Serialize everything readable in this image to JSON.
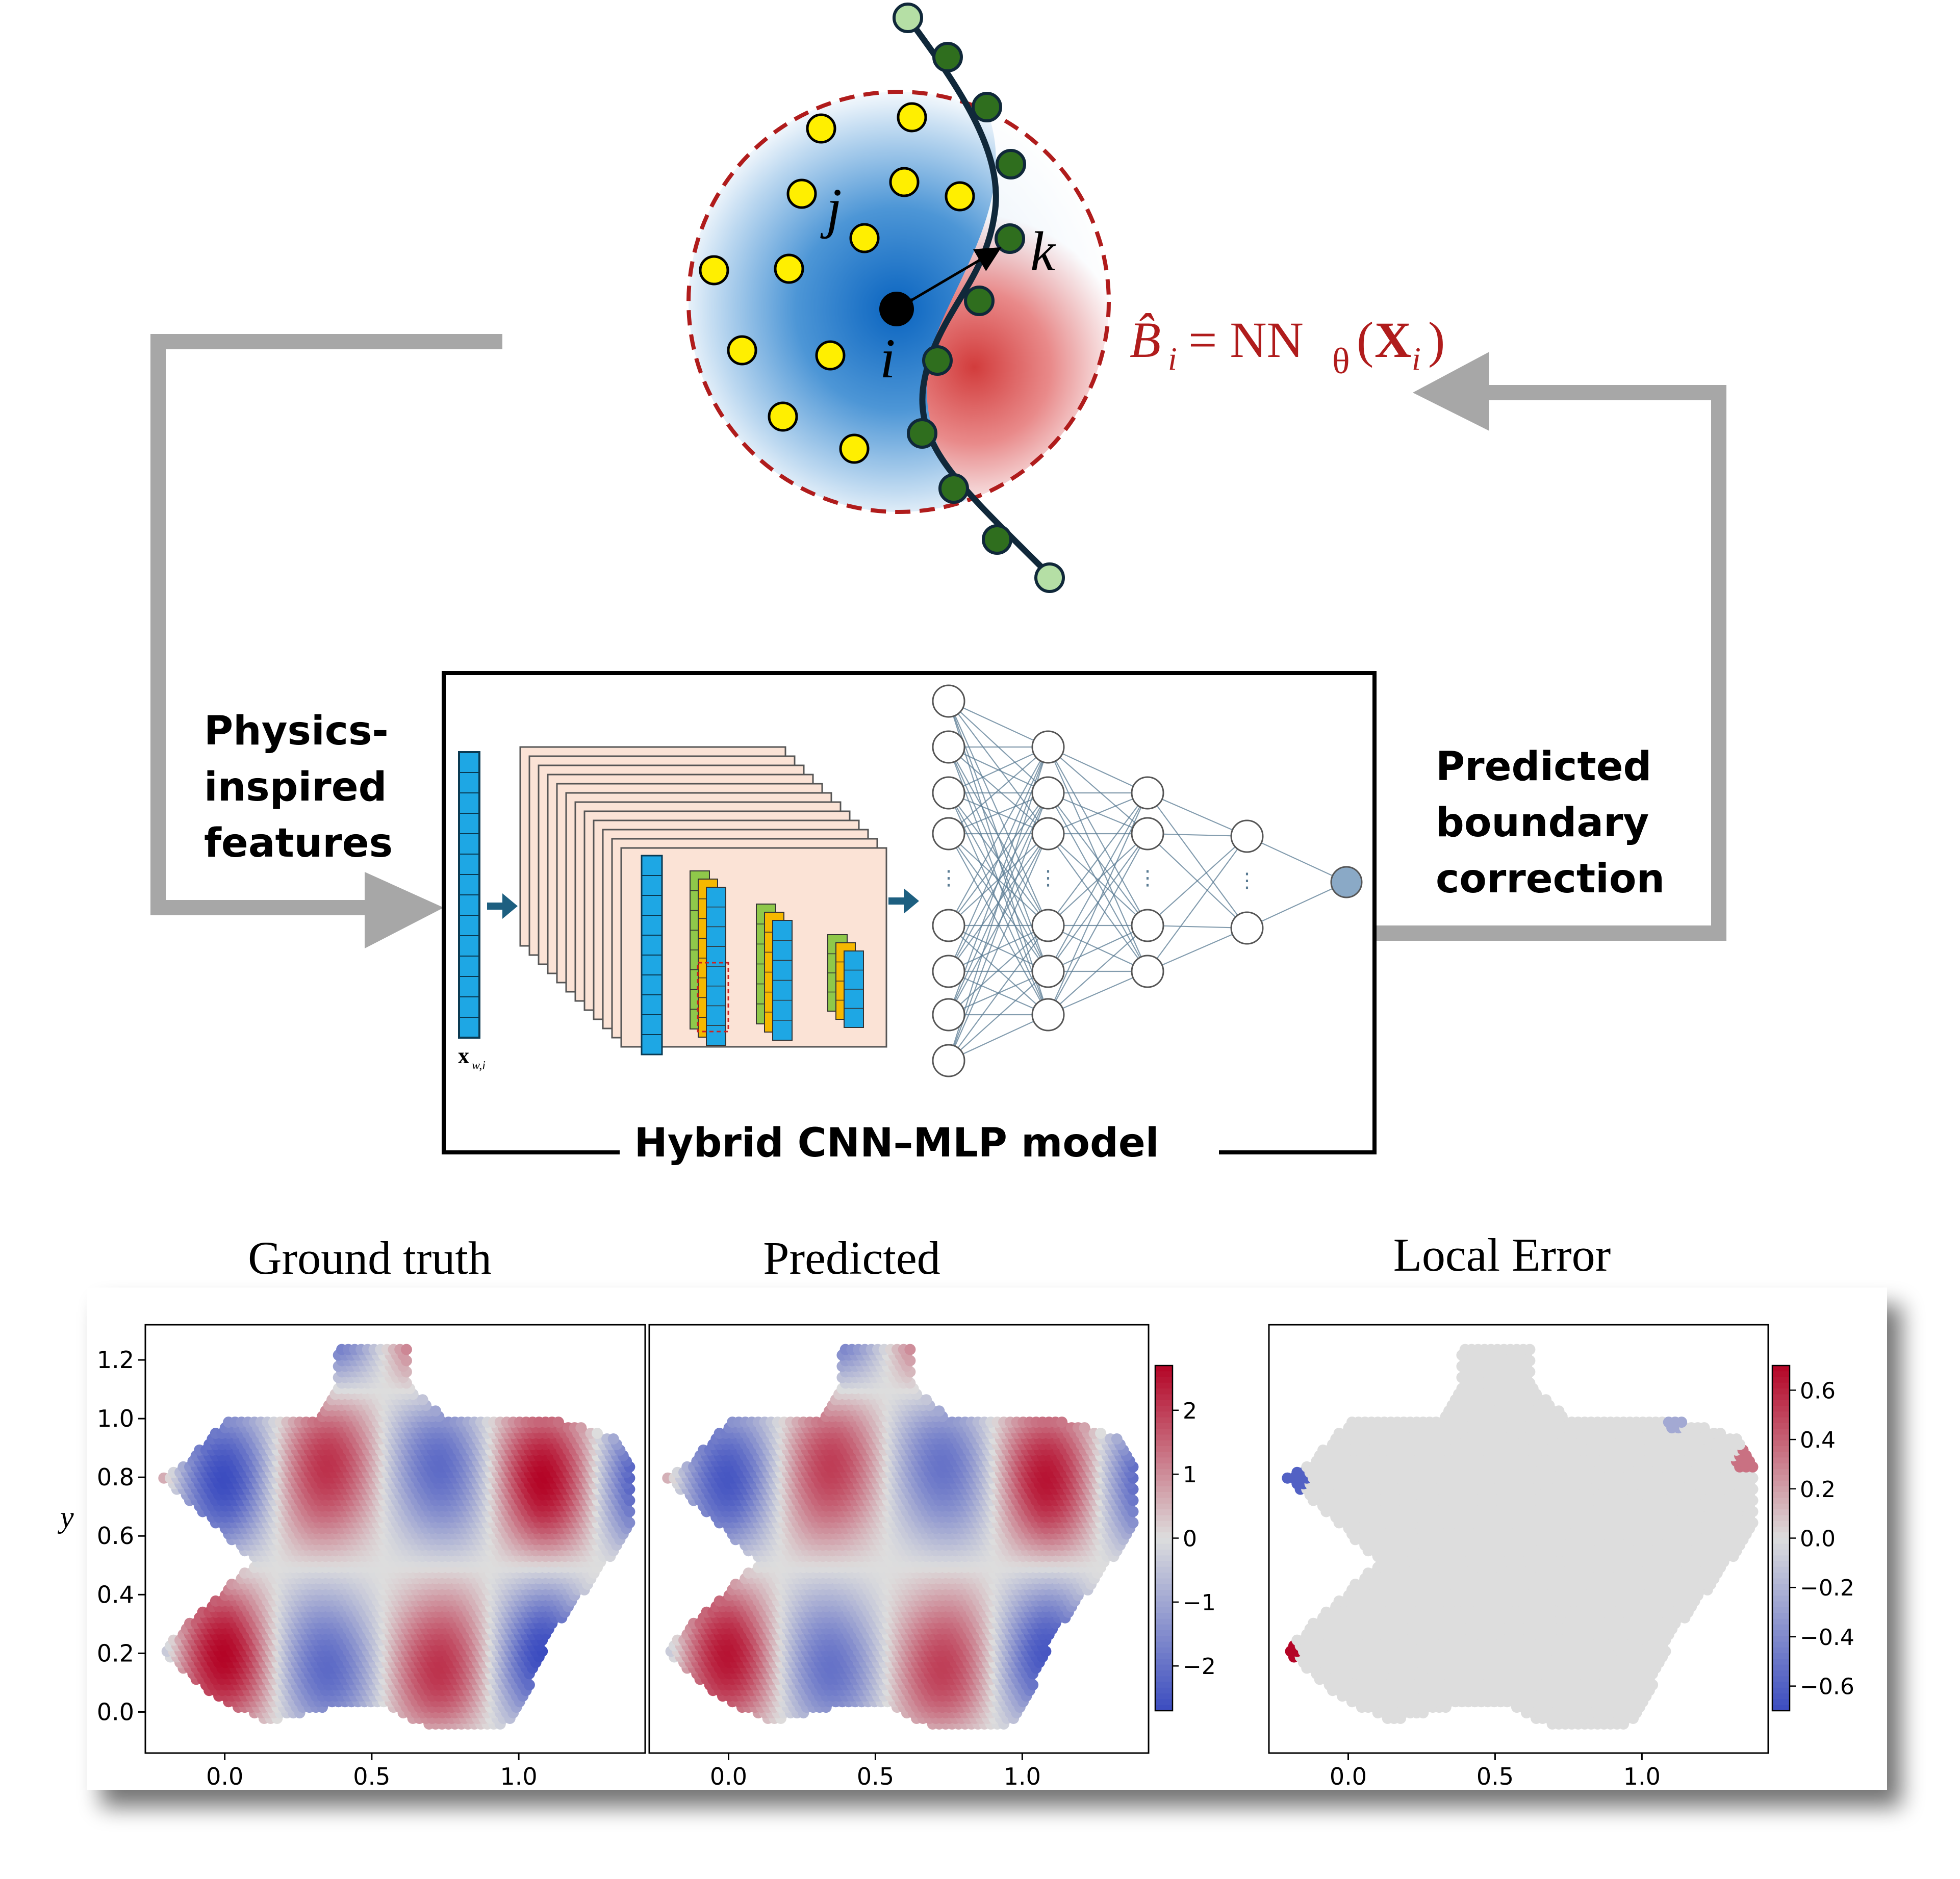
{
  "top_diagram": {
    "label_j": "j",
    "label_k": "k",
    "label_i": "i",
    "equation": {
      "lhs": "B̂",
      "lhs_sub": "i",
      "eq": " = NN",
      "theta": "θ",
      "open": "(",
      "X": "X",
      "X_sub": "i",
      "close": ")"
    },
    "colors": {
      "interior_node": "#ffef00",
      "boundary_node": "#2f6e1e",
      "boundary_end_node": "#b5dfa5",
      "circle_dash": "#b01c1c",
      "equation": "#b01c1c",
      "arrow_gray": "#a7a7a7"
    }
  },
  "left_label": [
    "Physics-",
    "inspired",
    "features"
  ],
  "right_label": [
    "Predicted",
    "boundary",
    "correction"
  ],
  "model_box": {
    "title": "Hybrid CNN–MLP model",
    "input_label": "x",
    "input_label_sub": "w,i",
    "mlp_layers": [
      9,
      7,
      5,
      3,
      1
    ]
  },
  "plots": {
    "titles": [
      "Ground truth",
      "Predicted",
      "Local Error"
    ],
    "ylabel": "y",
    "x_ticks": [
      "0.0",
      "0.5",
      "1.0"
    ],
    "y_ticks": [
      "1.2",
      "1.0",
      "0.8",
      "0.6",
      "0.4",
      "0.2",
      "0.0"
    ],
    "colorbar1_ticks": [
      "2",
      "1",
      "0",
      "−1",
      "−2"
    ],
    "colorbar2_ticks": [
      "0.6",
      "0.4",
      "0.2",
      "0.0",
      "−0.2",
      "−0.4",
      "−0.6"
    ],
    "cmap": [
      "#3b4cc0",
      "#dddddd",
      "#b40426"
    ]
  }
}
